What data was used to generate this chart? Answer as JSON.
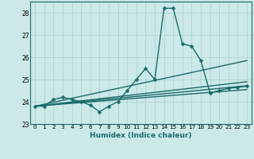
{
  "xlabel": "Humidex (Indice chaleur)",
  "xlim": [
    -0.5,
    23.5
  ],
  "ylim": [
    23,
    28.5
  ],
  "yticks": [
    23,
    24,
    25,
    26,
    27,
    28
  ],
  "xticks": [
    0,
    1,
    2,
    3,
    4,
    5,
    6,
    7,
    8,
    9,
    10,
    11,
    12,
    13,
    14,
    15,
    16,
    17,
    18,
    19,
    20,
    21,
    22,
    23
  ],
  "bg_color": "#cce8e8",
  "grid_color": "#b0d4d4",
  "line_color": "#1a6b6b",
  "lines": [
    {
      "x": [
        0,
        1,
        2,
        3,
        4,
        5,
        6,
        7,
        8,
        9,
        10,
        11,
        12,
        13,
        14,
        15,
        16,
        17,
        18,
        19,
        20,
        21,
        22,
        23
      ],
      "y": [
        23.8,
        23.8,
        24.1,
        24.2,
        24.1,
        24.0,
        23.85,
        23.55,
        23.8,
        24.0,
        24.5,
        25.0,
        25.5,
        25.0,
        28.2,
        28.2,
        26.6,
        26.5,
        25.85,
        24.4,
        24.5,
        24.6,
        24.65,
        24.7
      ],
      "marker": "D",
      "markersize": 2.5,
      "linewidth": 1.0,
      "has_markers": true
    },
    {
      "x": [
        0,
        23
      ],
      "y": [
        23.8,
        25.85
      ],
      "marker": null,
      "markersize": 0,
      "linewidth": 1.0,
      "has_markers": false
    },
    {
      "x": [
        0,
        23
      ],
      "y": [
        23.8,
        24.9
      ],
      "marker": null,
      "markersize": 0,
      "linewidth": 1.0,
      "has_markers": false
    },
    {
      "x": [
        0,
        23
      ],
      "y": [
        23.8,
        24.72
      ],
      "marker": null,
      "markersize": 0,
      "linewidth": 1.0,
      "has_markers": false
    },
    {
      "x": [
        0,
        23
      ],
      "y": [
        23.8,
        24.55
      ],
      "marker": null,
      "markersize": 0,
      "linewidth": 1.0,
      "has_markers": false
    }
  ]
}
